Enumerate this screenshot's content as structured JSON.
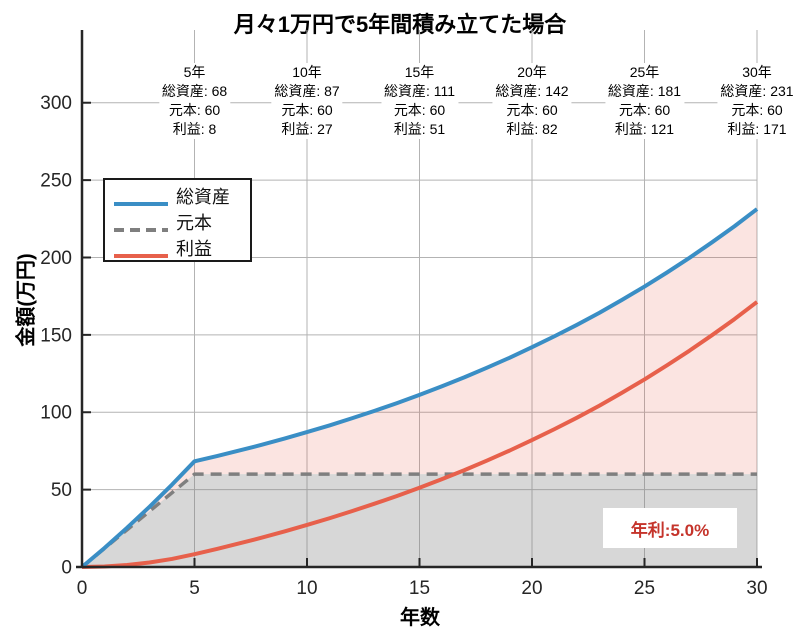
{
  "chart_data": {
    "type": "line",
    "title": "月々1万円で5年間積み立てた場合",
    "xlabel": "年数",
    "ylabel": "金額(万円)",
    "xlim": [
      0,
      30
    ],
    "ylim": [
      0,
      347
    ],
    "xticks": [
      0,
      5,
      10,
      15,
      20,
      25,
      30
    ],
    "yticks": [
      0,
      50,
      100,
      150,
      200,
      250,
      300
    ],
    "grid": true,
    "grid_color": "#b3b3b3",
    "axis_color": "#262626",
    "x": [
      0,
      1,
      2,
      3,
      4,
      5,
      6,
      7,
      8,
      9,
      10,
      11,
      12,
      13,
      14,
      15,
      16,
      17,
      18,
      19,
      20,
      21,
      22,
      23,
      24,
      25,
      26,
      27,
      28,
      29,
      30
    ],
    "series": [
      {
        "name": "総資産",
        "color": "#3A8EC5",
        "style": "solid",
        "values": [
          0,
          12.3,
          25.3,
          38.9,
          53.2,
          68.3,
          71.7,
          75.3,
          79.0,
          83.0,
          87.2,
          91.5,
          96.1,
          100.9,
          105.9,
          111.2,
          116.8,
          122.6,
          128.8,
          135.2,
          142.0,
          149.1,
          156.5,
          164.3,
          172.6,
          181.2,
          190.3,
          199.8,
          209.8,
          220.2,
          231.3
        ]
      },
      {
        "name": "元本",
        "color": "#7F7F7F",
        "style": "dashed",
        "values": [
          0,
          12,
          24,
          36,
          48,
          60,
          60,
          60,
          60,
          60,
          60,
          60,
          60,
          60,
          60,
          60,
          60,
          60,
          60,
          60,
          60,
          60,
          60,
          60,
          60,
          60,
          60,
          60,
          60,
          60,
          60
        ]
      },
      {
        "name": "利益",
        "color": "#E7604B",
        "style": "solid",
        "values": [
          0,
          0.3,
          1.3,
          2.9,
          5.2,
          8.3,
          11.7,
          15.3,
          19.0,
          23.0,
          27.2,
          31.5,
          36.1,
          40.9,
          45.9,
          51.2,
          56.8,
          62.6,
          68.8,
          75.2,
          82.0,
          89.1,
          96.5,
          104.3,
          112.6,
          121.2,
          130.3,
          139.8,
          149.8,
          160.2,
          171.3
        ]
      }
    ],
    "fills": [
      {
        "name": "principal-area",
        "between": [
          "元本",
          "zero"
        ],
        "color": "rgba(130,130,130,0.32)"
      },
      {
        "name": "profit-area",
        "between": [
          "総資産",
          "元本"
        ],
        "color": "rgba(231,96,75,0.17)"
      }
    ],
    "legend": {
      "position": "upper-left",
      "entries": [
        "総資産",
        "元本",
        "利益"
      ]
    },
    "annotations": [
      {
        "x": 5,
        "year_label": "5年",
        "lines": [
          "総資産: 68",
          "元本: 60",
          "利益: 8"
        ]
      },
      {
        "x": 10,
        "year_label": "10年",
        "lines": [
          "総資産: 87",
          "元本: 60",
          "利益: 27"
        ]
      },
      {
        "x": 15,
        "year_label": "15年",
        "lines": [
          "総資産: 111",
          "元本: 60",
          "利益: 51"
        ]
      },
      {
        "x": 20,
        "year_label": "20年",
        "lines": [
          "総資産: 142",
          "元本: 60",
          "利益: 82"
        ]
      },
      {
        "x": 25,
        "year_label": "25年",
        "lines": [
          "総資産: 181",
          "元本: 60",
          "利益: 121"
        ]
      },
      {
        "x": 30,
        "year_label": "30年",
        "lines": [
          "総資産: 231",
          "元本: 60",
          "利益: 171"
        ]
      }
    ],
    "rate_label": "年利:5.0%",
    "rate_label_color": "#C5342B"
  }
}
